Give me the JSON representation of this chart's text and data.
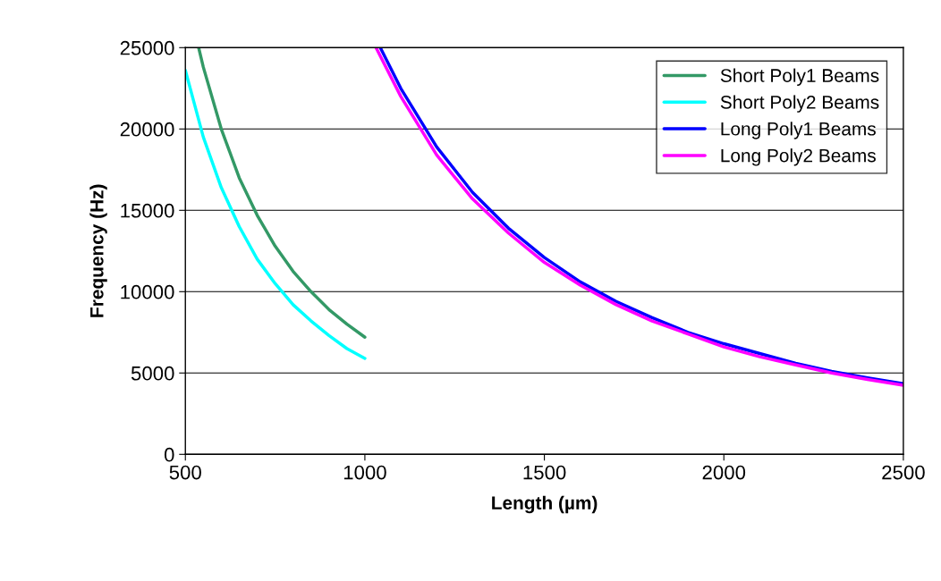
{
  "chart_data": {
    "type": "line",
    "xlabel": "Length (µm)",
    "ylabel": "Frequency (Hz)",
    "xlim": [
      500,
      2500
    ],
    "xticks": [
      500,
      1000,
      1500,
      2000,
      2500
    ],
    "ylim": [
      0,
      25000
    ],
    "yticks": [
      0,
      5000,
      10000,
      15000,
      20000,
      25000
    ],
    "grid": "y",
    "legend": "top right",
    "marker": "none",
    "line_style": "solid",
    "series": [
      {
        "name": "Short Poly1 Beams",
        "color": "#339966",
        "x": [
          537,
          550,
          600,
          650,
          700,
          750,
          800,
          850,
          900,
          950,
          1000
        ],
        "values": [
          25000,
          23800,
          20000,
          17000,
          14700,
          12800,
          11250,
          10000,
          8900,
          8000,
          7200
        ]
      },
      {
        "name": "Short Poly2 Beams",
        "color": "#00ffff",
        "x": [
          500,
          550,
          600,
          650,
          700,
          750,
          800,
          850,
          900,
          950,
          1000
        ],
        "values": [
          23600,
          19500,
          16400,
          14000,
          12000,
          10500,
          9200,
          8200,
          7300,
          6500,
          5900
        ]
      },
      {
        "name": "Long Poly1 Beams",
        "color": "#0000ff",
        "x": [
          1043,
          1100,
          1200,
          1300,
          1400,
          1500,
          1600,
          1700,
          1800,
          1900,
          2000,
          2100,
          2200,
          2300,
          2400,
          2500
        ],
        "values": [
          25000,
          22500,
          18900,
          16100,
          13900,
          12100,
          10600,
          9400,
          8400,
          7500,
          6800,
          6200,
          5600,
          5100,
          4700,
          4350
        ]
      },
      {
        "name": "Long Poly2 Beams",
        "color": "#ff00ff",
        "x": [
          1031,
          1100,
          1200,
          1300,
          1400,
          1500,
          1600,
          1700,
          1800,
          1900,
          2000,
          2100,
          2200,
          2300,
          2400,
          2500
        ],
        "values": [
          25000,
          22000,
          18400,
          15700,
          13600,
          11800,
          10400,
          9200,
          8200,
          7400,
          6600,
          6000,
          5500,
          5000,
          4600,
          4250
        ]
      }
    ]
  }
}
